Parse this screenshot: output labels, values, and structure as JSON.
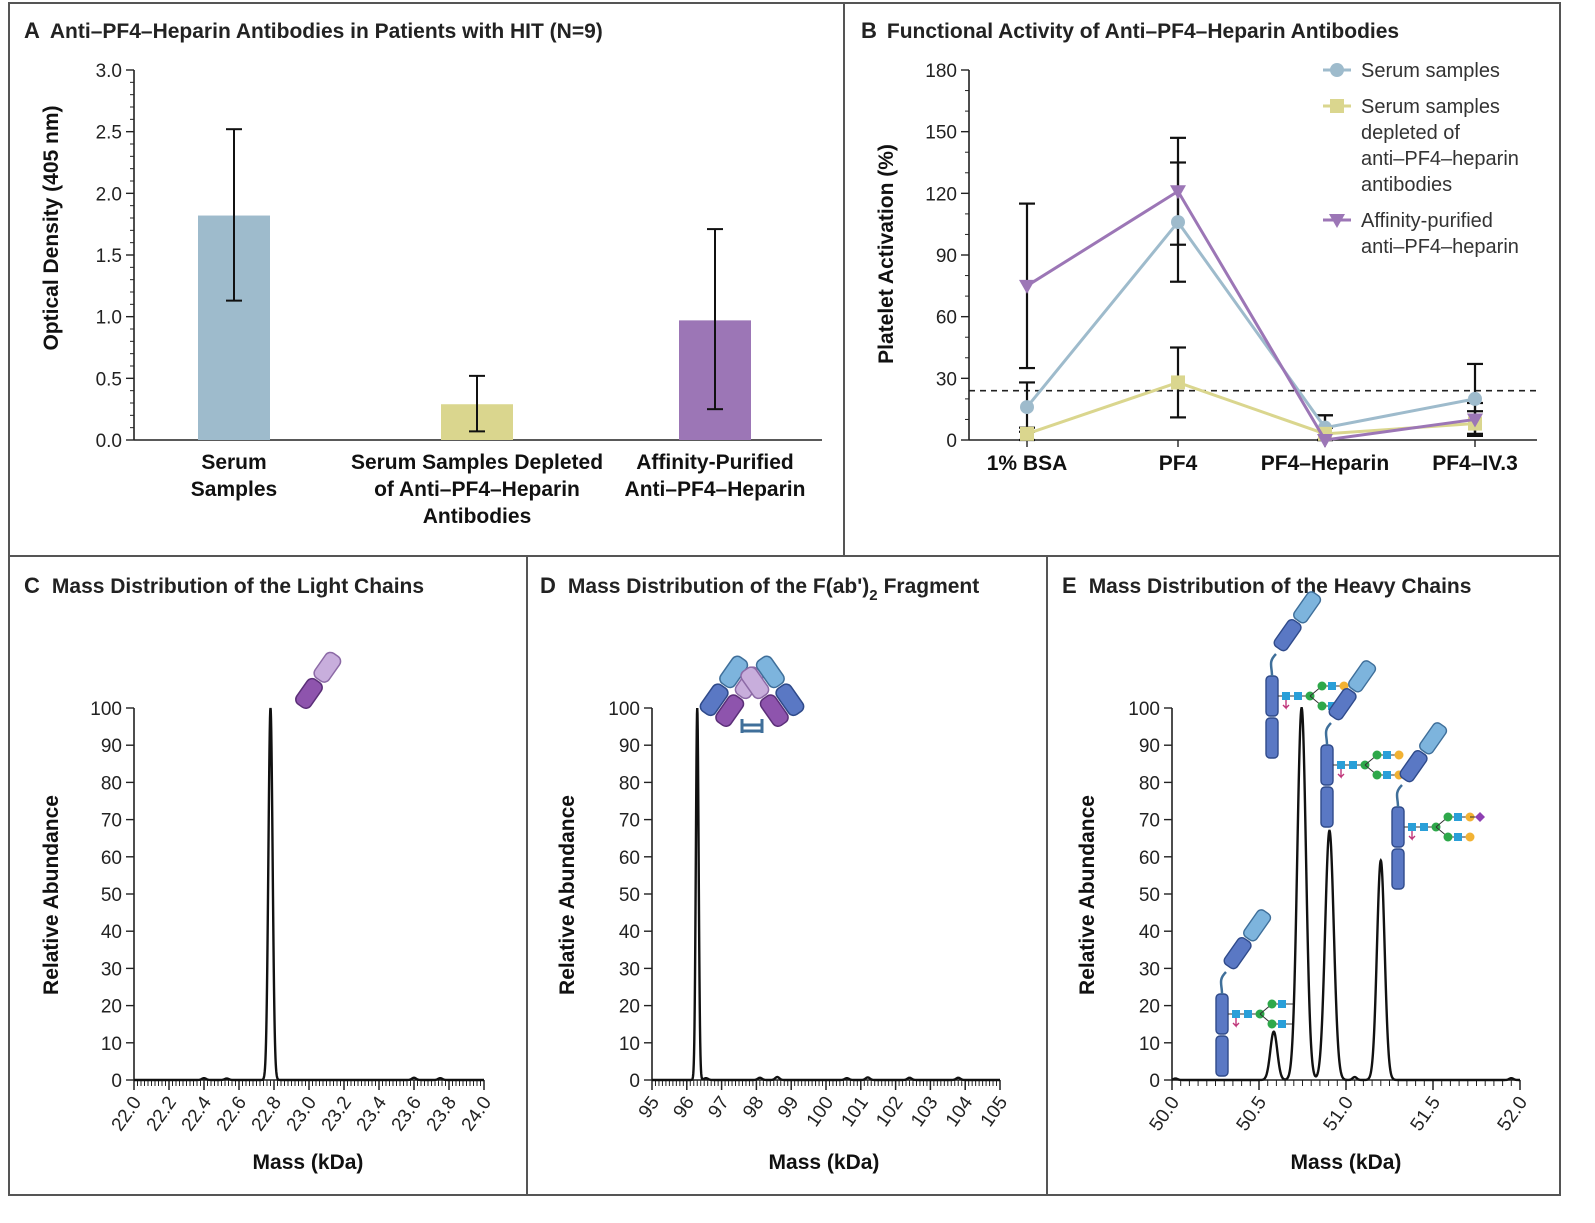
{
  "colors": {
    "serum": "#9ebbcc",
    "depleted": "#dad68e",
    "purified": "#9c76b6",
    "line": "#111111",
    "frame": "#555555"
  },
  "panelA": {
    "letter": "A",
    "title": "Anti–PF4–Heparin Antibodies in Patients with HIT (N=9)",
    "ylabel": "Optical Density (405 nm)",
    "yticks": [
      "0.0",
      "0.5",
      "1.0",
      "1.5",
      "2.0",
      "2.5",
      "3.0"
    ],
    "categories": [
      {
        "lines": [
          "Serum",
          "Samples"
        ]
      },
      {
        "lines": [
          "Serum Samples Depleted",
          "of Anti–PF4–Heparin",
          "Antibodies"
        ]
      },
      {
        "lines": [
          "Affinity-Purified",
          "Anti–PF4–Heparin"
        ]
      }
    ]
  },
  "panelB": {
    "letter": "B",
    "title": "Functional Activity of Anti–PF4–Heparin Antibodies",
    "ylabel": "Platelet Activation (%)",
    "yticks": [
      "0",
      "30",
      "60",
      "90",
      "120",
      "150",
      "180"
    ],
    "categories": [
      "1% BSA",
      "PF4",
      "PF4–Heparin",
      "PF4–IV.3"
    ],
    "legend": [
      {
        "lines": [
          "Serum samples"
        ]
      },
      {
        "lines": [
          "Serum samples",
          "depleted of",
          "anti–PF4–heparin",
          "antibodies"
        ]
      },
      {
        "lines": [
          "Affinity-purified",
          "anti–PF4–heparin"
        ]
      }
    ]
  },
  "panelC": {
    "letter": "C",
    "title": "Mass Distribution of the Light Chains",
    "ylabel": "Relative Abundance",
    "xlabel": "Mass (kDa)",
    "yticks": [
      "0",
      "10",
      "20",
      "30",
      "40",
      "50",
      "60",
      "70",
      "80",
      "90",
      "100"
    ],
    "xticks": [
      "22.0",
      "22.2",
      "22.4",
      "22.6",
      "22.8",
      "23.0",
      "23.2",
      "23.4",
      "23.6",
      "23.8",
      "24.0"
    ]
  },
  "panelD": {
    "letter": "D",
    "title": "Mass Distribution of the F(ab')",
    "title_sub": "2",
    "title_end": "Fragment",
    "ylabel": "Relative Abundance",
    "xlabel": "Mass (kDa)",
    "yticks": [
      "0",
      "10",
      "20",
      "30",
      "40",
      "50",
      "60",
      "70",
      "80",
      "90",
      "100"
    ],
    "xticks": [
      "95",
      "96",
      "97",
      "98",
      "99",
      "100",
      "101",
      "102",
      "103",
      "104",
      "105"
    ]
  },
  "panelE": {
    "letter": "E",
    "title": "Mass Distribution of the Heavy Chains",
    "ylabel": "Relative Abundance",
    "xlabel": "Mass (kDa)",
    "yticks": [
      "0",
      "10",
      "20",
      "30",
      "40",
      "50",
      "60",
      "70",
      "80",
      "90",
      "100"
    ],
    "xticks": [
      "50.0",
      "50.5",
      "51.0",
      "51.5",
      "52.0"
    ]
  },
  "chart_data": [
    {
      "panel": "A",
      "type": "bar",
      "title": "Anti–PF4–Heparin Antibodies in Patients with HIT (N=9)",
      "ylabel": "Optical Density (405 nm)",
      "ylim": [
        0,
        3.0
      ],
      "categories": [
        "Serum Samples",
        "Serum Samples Depleted of Anti–PF4–Heparin Antibodies",
        "Affinity-Purified Anti–PF4–Heparin"
      ],
      "values": [
        1.82,
        0.29,
        0.97
      ],
      "error_low": [
        1.13,
        0.07,
        0.25
      ],
      "error_high": [
        2.52,
        0.52,
        1.71
      ]
    },
    {
      "panel": "B",
      "type": "line",
      "title": "Functional Activity of Anti–PF4–Heparin Antibodies",
      "ylabel": "Platelet Activation (%)",
      "ylim": [
        0,
        180
      ],
      "categories": [
        "1% BSA",
        "PF4",
        "PF4–Heparin",
        "PF4–IV.3"
      ],
      "threshold": 24,
      "legend_position": "top-right",
      "series": [
        {
          "name": "Serum samples",
          "values": [
            16,
            106,
            6,
            20
          ],
          "err": [
            12,
            29,
            6,
            17
          ]
        },
        {
          "name": "Serum samples depleted of anti–PF4–heparin antibodies",
          "values": [
            3,
            28,
            3,
            8
          ],
          "err": [
            3,
            17,
            3,
            6
          ]
        },
        {
          "name": "Affinity-purified anti–PF4–heparin",
          "values": [
            75,
            121,
            0,
            10
          ],
          "err": [
            40,
            26,
            12,
            8
          ]
        }
      ]
    },
    {
      "panel": "C",
      "type": "line",
      "title": "Mass Distribution of the Light Chains",
      "xlabel": "Mass (kDa)",
      "ylabel": "Relative Abundance",
      "xlim": [
        22.0,
        24.0
      ],
      "ylim": [
        0,
        100
      ],
      "peaks": [
        {
          "x": 22.78,
          "y": 100,
          "w": 0.012
        }
      ],
      "noise": [
        [
          22.4,
          0.5
        ],
        [
          22.53,
          0.4
        ],
        [
          23.6,
          0.6
        ],
        [
          23.75,
          0.5
        ]
      ]
    },
    {
      "panel": "D",
      "type": "line",
      "title": "Mass Distribution of the F(ab')2 Fragment",
      "xlabel": "Mass (kDa)",
      "ylabel": "Relative Abundance",
      "xlim": [
        95,
        105
      ],
      "ylim": [
        0,
        100
      ],
      "peaks": [
        {
          "x": 96.3,
          "y": 100,
          "w": 0.04
        }
      ],
      "noise": [
        [
          96.55,
          0.5
        ],
        [
          98.1,
          0.6
        ],
        [
          98.6,
          0.8
        ],
        [
          100.6,
          0.5
        ],
        [
          101.2,
          0.7
        ],
        [
          102.4,
          0.6
        ],
        [
          103.8,
          0.6
        ]
      ]
    },
    {
      "panel": "E",
      "type": "line",
      "title": "Mass Distribution of the Heavy Chains",
      "xlabel": "Mass (kDa)",
      "ylabel": "Relative Abundance",
      "xlim": [
        50.0,
        52.0
      ],
      "ylim": [
        0,
        100
      ],
      "peaks": [
        {
          "x": 50.585,
          "y": 13,
          "w": 0.02
        },
        {
          "x": 50.745,
          "y": 100,
          "w": 0.025
        },
        {
          "x": 50.905,
          "y": 67,
          "w": 0.025
        },
        {
          "x": 51.2,
          "y": 59,
          "w": 0.022
        }
      ],
      "noise": [
        [
          50.02,
          0.4
        ],
        [
          51.05,
          0.8
        ],
        [
          51.95,
          0.5
        ]
      ]
    }
  ]
}
